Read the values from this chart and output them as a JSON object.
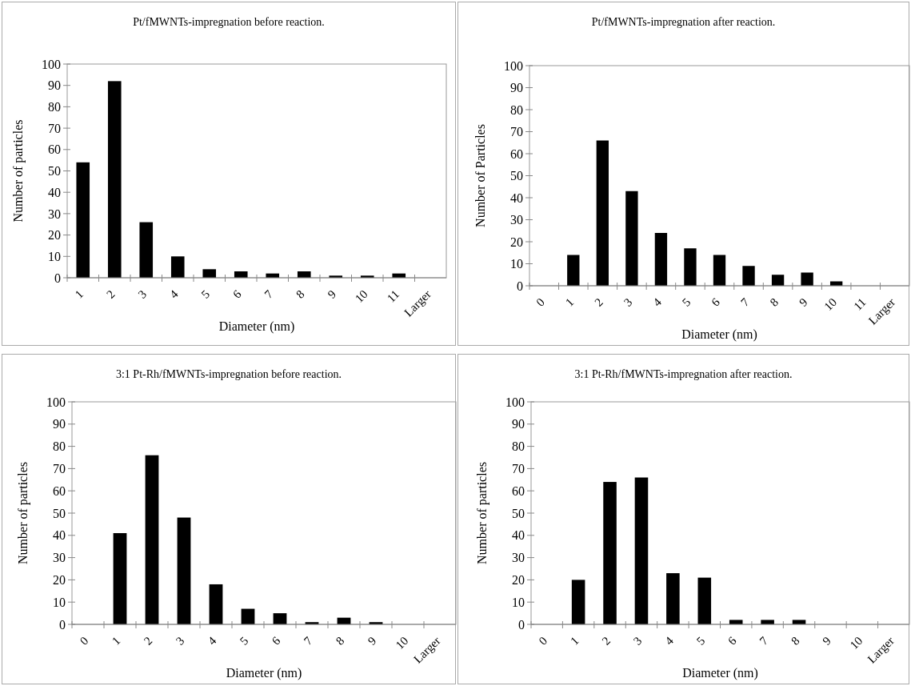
{
  "chart_data": [
    {
      "type": "bar",
      "title": "Pt/fMWNTs-impregnation before reaction.",
      "xlabel": "Diameter (nm)",
      "ylabel": "Number of particles",
      "categories": [
        "1",
        "2",
        "3",
        "4",
        "5",
        "6",
        "7",
        "8",
        "9",
        "10",
        "11",
        "Larger"
      ],
      "values": [
        54,
        92,
        26,
        10,
        4,
        3,
        2,
        3,
        1,
        1,
        2,
        0
      ],
      "color": "#000000",
      "ylim": [
        0,
        100
      ],
      "yticks": [
        0,
        10,
        20,
        30,
        40,
        50,
        60,
        70,
        80,
        90,
        100
      ],
      "grid": false
    },
    {
      "type": "bar",
      "title": "Pt/fMWNTs-impregnation after reaction.",
      "xlabel": "Diameter (nm)",
      "ylabel": "Number of Particles",
      "categories": [
        "0",
        "1",
        "2",
        "3",
        "4",
        "5",
        "6",
        "7",
        "8",
        "9",
        "10",
        "11",
        "Larger"
      ],
      "values": [
        0,
        14,
        66,
        43,
        24,
        17,
        14,
        9,
        5,
        6,
        2,
        0,
        0
      ],
      "color": "#000000",
      "ylim": [
        0,
        100
      ],
      "yticks": [
        0,
        10,
        20,
        30,
        40,
        50,
        60,
        70,
        80,
        90,
        100
      ],
      "grid": false
    },
    {
      "type": "bar",
      "title": "3:1 Pt-Rh/fMWNTs-impregnation before reaction.",
      "xlabel": "Diameter (nm)",
      "ylabel": "Number of particles",
      "categories": [
        "0",
        "1",
        "2",
        "3",
        "4",
        "5",
        "6",
        "7",
        "8",
        "9",
        "10",
        "Larger"
      ],
      "values": [
        0,
        41,
        76,
        48,
        18,
        7,
        5,
        1,
        3,
        1,
        0,
        0
      ],
      "color": "#000000",
      "ylim": [
        0,
        100
      ],
      "yticks": [
        0,
        10,
        20,
        30,
        40,
        50,
        60,
        70,
        80,
        90,
        100
      ],
      "grid": false
    },
    {
      "type": "bar",
      "title": "3:1 Pt-Rh/fMWNTs-impregnation after reaction.",
      "xlabel": "Diameter (nm)",
      "ylabel": "Number of particles",
      "categories": [
        "0",
        "1",
        "2",
        "3",
        "4",
        "5",
        "6",
        "7",
        "8",
        "9",
        "10",
        "Larger"
      ],
      "values": [
        0,
        20,
        64,
        66,
        23,
        21,
        2,
        2,
        2,
        0,
        0,
        0
      ],
      "color": "#000000",
      "ylim": [
        0,
        100
      ],
      "yticks": [
        0,
        10,
        20,
        30,
        40,
        50,
        60,
        70,
        80,
        90,
        100
      ],
      "grid": false
    }
  ]
}
